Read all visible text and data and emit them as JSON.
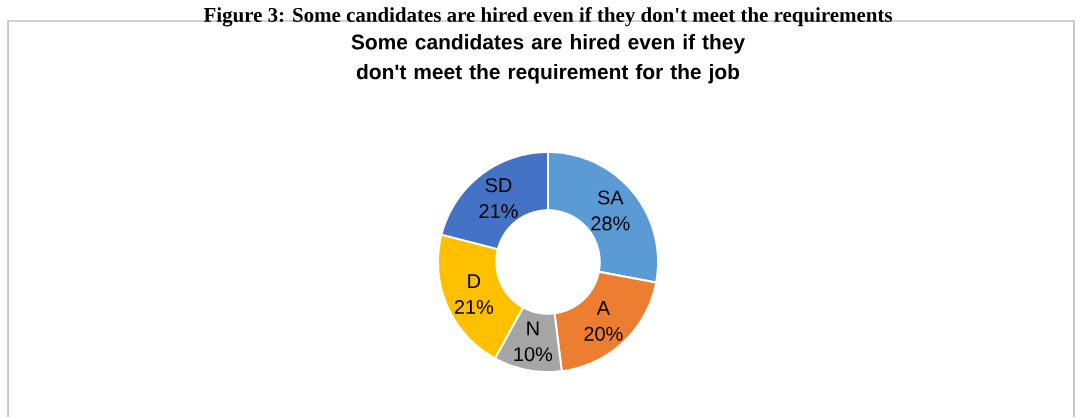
{
  "chart_data": {
    "type": "donut",
    "title": "Some candidates are hired even if they don't meet the requirement for the job",
    "annotations": [
      "Figure 3: Some candidates are hired even if they don't meet the requirements"
    ],
    "categories": [
      "SA",
      "A",
      "N",
      "D",
      "SD"
    ],
    "values": [
      28,
      20,
      10,
      21,
      21
    ],
    "value_labels": [
      "28%",
      "20%",
      "10%",
      "21%",
      "21%"
    ],
    "colors": [
      "#5b9bd5",
      "#ed7d31",
      "#a5a5a5",
      "#ffc000",
      "#4472c4"
    ]
  }
}
